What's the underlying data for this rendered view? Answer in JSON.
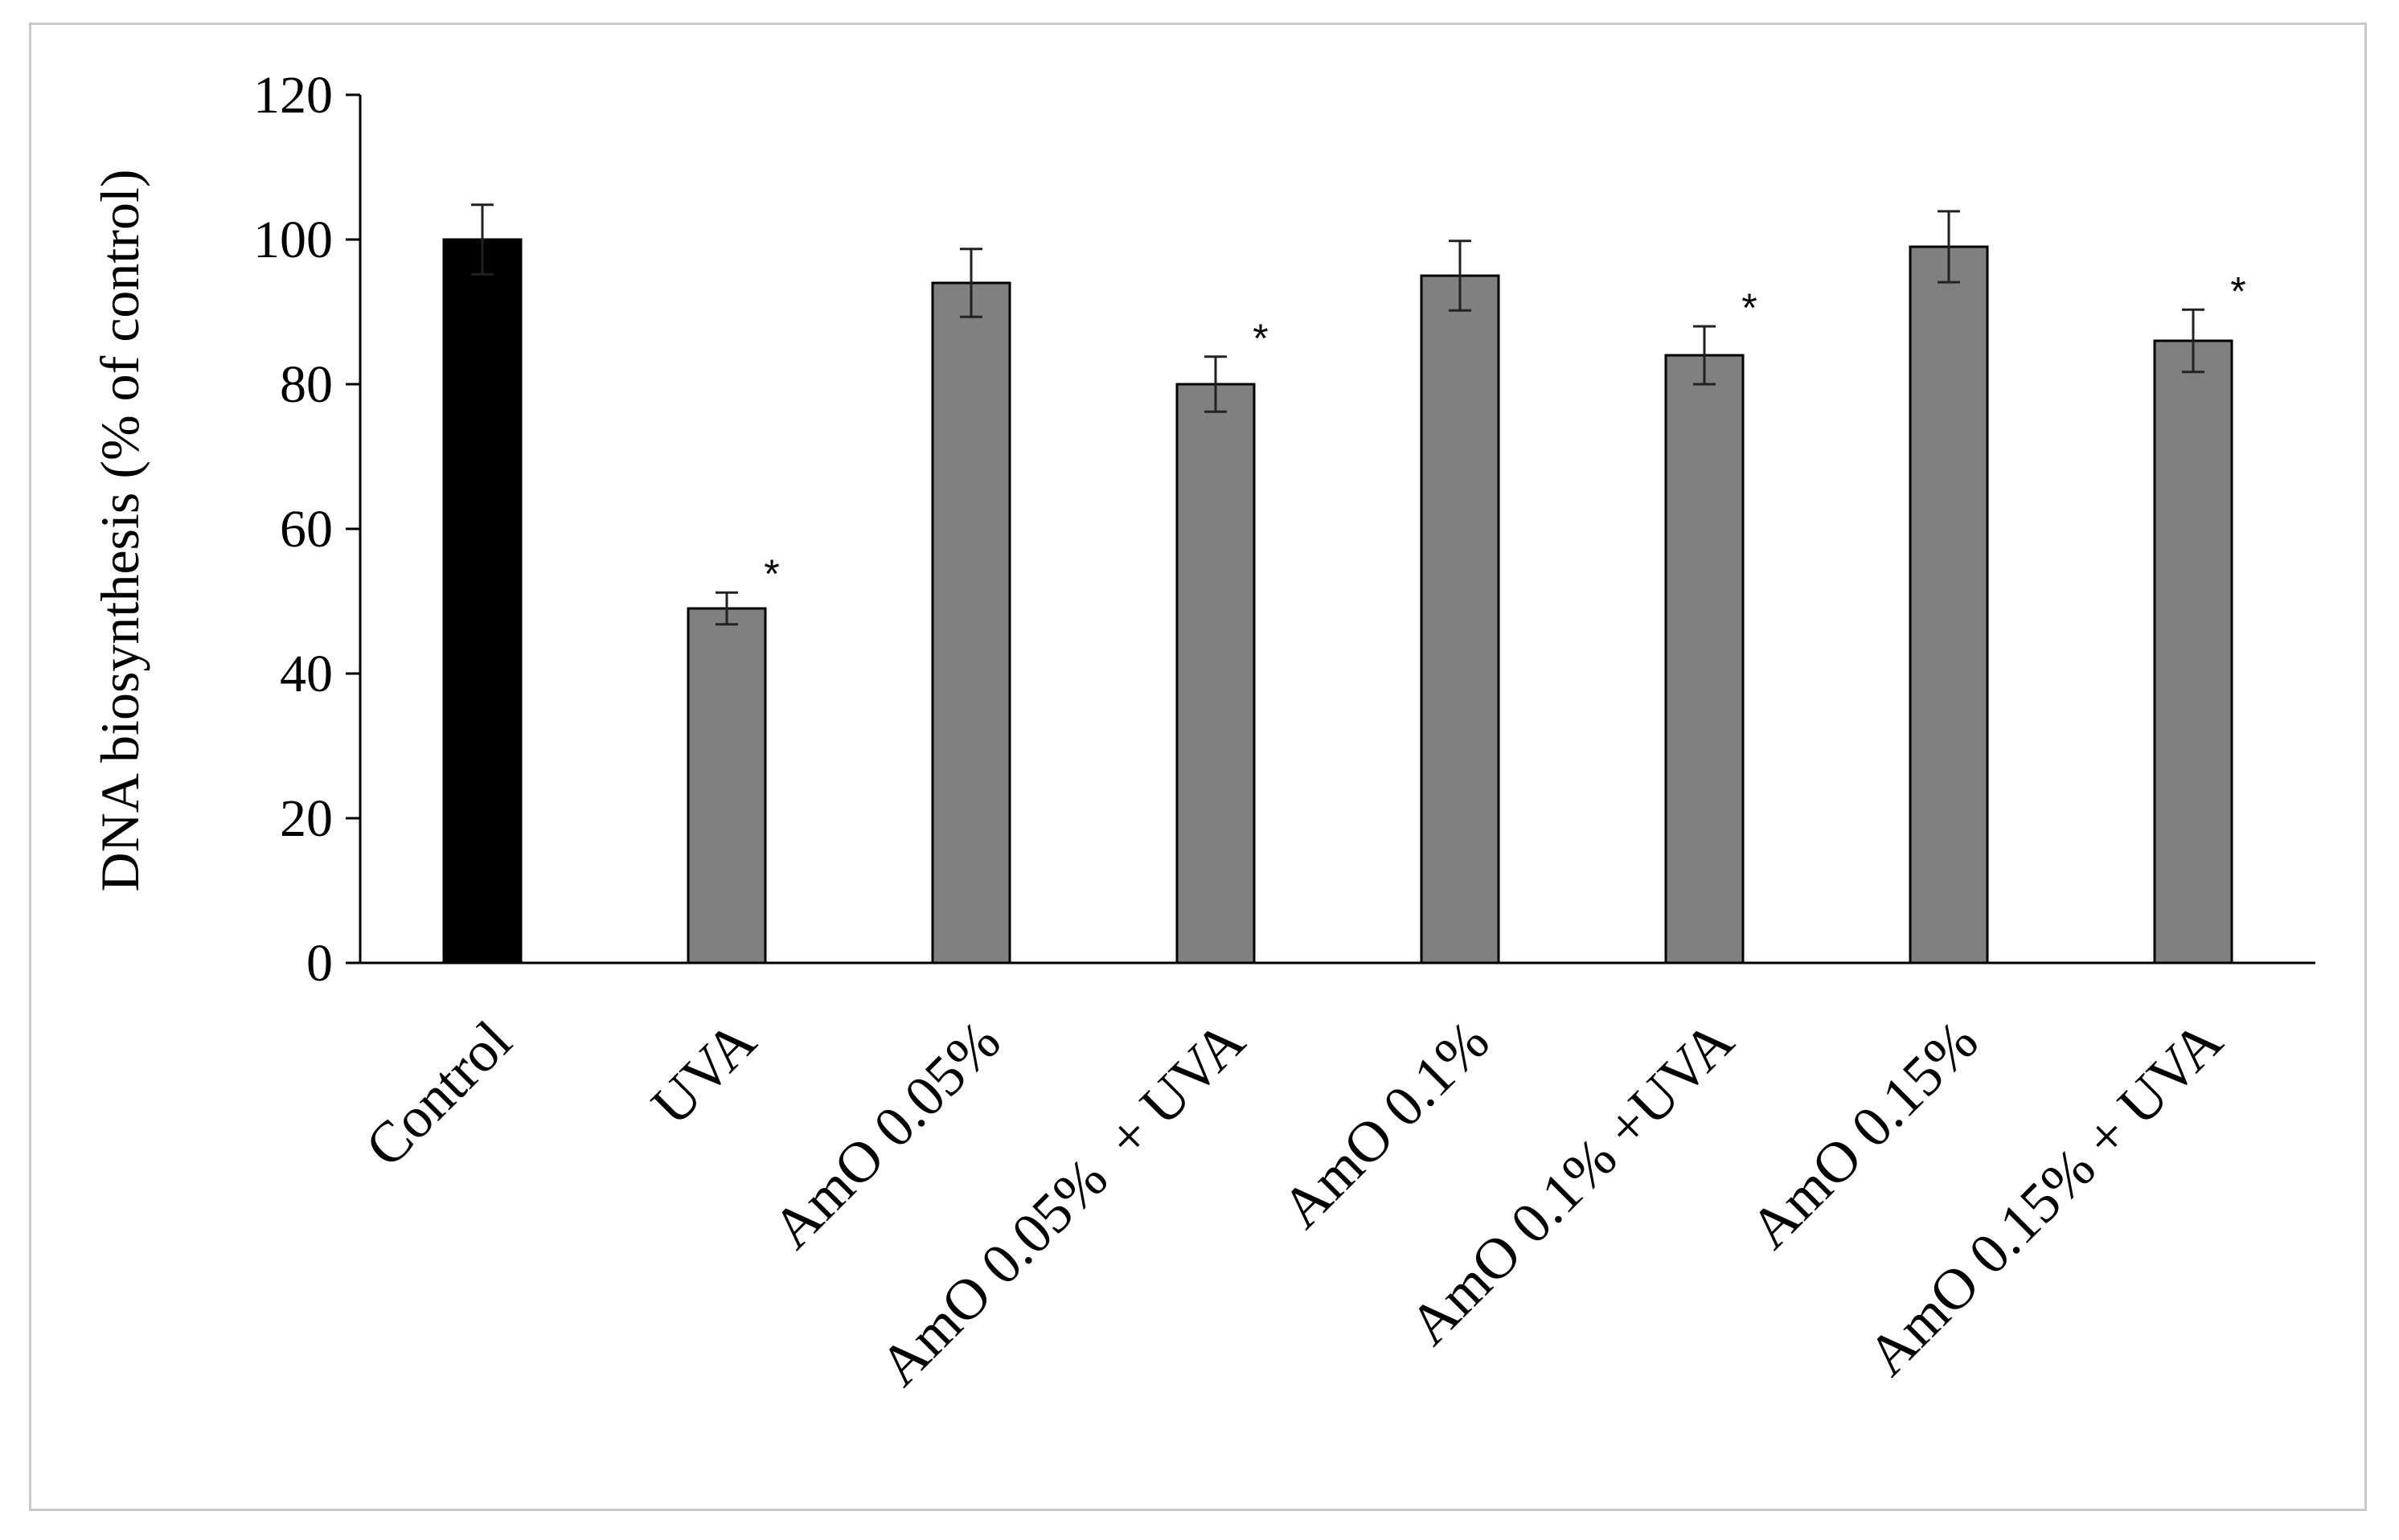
{
  "chart_data": {
    "type": "bar",
    "title": "",
    "xlabel": "",
    "ylabel": "DNA biosynthesis (% of control)",
    "ylim": [
      0,
      120
    ],
    "yticks": [
      0,
      20,
      40,
      60,
      80,
      100,
      120
    ],
    "grid": false,
    "legend": "none",
    "categories": [
      "Control",
      "UVA",
      "AmO 0.05%",
      "AmO 0.05%  + UVA",
      "AmO 0.1%",
      "AmO 0.1% +UVA",
      "AmO 0.15%",
      "AmO 0.15% + UVA"
    ],
    "values": [
      100,
      49,
      94,
      80,
      95,
      84,
      99,
      86
    ],
    "errors": [
      4.8,
      2.2,
      4.7,
      3.8,
      4.8,
      4.0,
      4.9,
      4.3
    ],
    "significance": [
      "",
      "*",
      "",
      "*",
      "",
      "*",
      "",
      "*"
    ],
    "colors": [
      "#000000",
      "#808080",
      "#808080",
      "#808080",
      "#808080",
      "#808080",
      "#808080",
      "#808080"
    ]
  }
}
